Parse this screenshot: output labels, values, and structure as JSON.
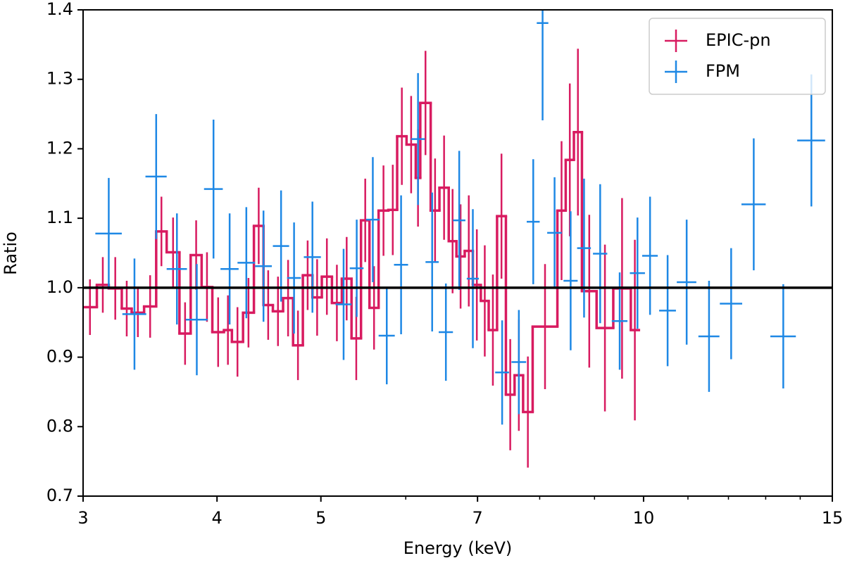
{
  "chart_data": {
    "type": "errorbar",
    "xlabel": "Energy (keV)",
    "ylabel": "Ratio",
    "xscale": "log",
    "xlim": [
      3,
      15
    ],
    "xticks": [
      3,
      4,
      5,
      7,
      10,
      15
    ],
    "xminor_ticks": [
      6,
      8,
      9,
      11,
      12,
      13,
      14
    ],
    "ylim": [
      0.7,
      1.4
    ],
    "yticks": [
      0.7,
      0.8,
      0.9,
      {
        "value": 1,
        "label": "1.0"
      },
      1.1,
      1.2,
      1.3,
      1.4
    ],
    "hline": 1,
    "legend": "upper right",
    "series": [
      {
        "name": "EPIC-pn",
        "color": "#d81b60",
        "drawstyle": "steps",
        "bins": [
          3.0,
          3.09,
          3.17,
          3.26,
          3.33,
          3.42,
          3.51,
          3.59,
          3.69,
          3.78,
          3.87,
          3.96,
          4.06,
          4.13,
          4.23,
          4.33,
          4.42,
          4.51,
          4.61,
          4.71,
          4.81,
          4.91,
          5.01,
          5.12,
          5.23,
          5.34,
          5.45,
          5.55,
          5.66,
          5.78,
          5.89,
          6.01,
          6.13,
          6.19,
          6.33,
          6.45,
          6.58,
          6.69,
          6.81,
          6.93,
          7.05,
          7.17,
          7.3,
          7.44,
          7.58,
          7.72,
          7.88,
          8.31,
          8.46,
          8.61,
          8.76,
          9.04,
          9.37,
          9.73,
          9.9
        ],
        "values": [
          0.972,
          1.004,
          0.999,
          0.97,
          0.964,
          0.973,
          1.081,
          1.051,
          0.934,
          1.047,
          1.001,
          0.936,
          0.939,
          0.922,
          0.964,
          1.089,
          0.975,
          0.966,
          0.985,
          0.917,
          1.018,
          0.986,
          1.016,
          0.978,
          1.013,
          0.927,
          1.097,
          0.971,
          1.111,
          1.112,
          1.218,
          1.206,
          1.158,
          1.266,
          1.111,
          1.144,
          1.067,
          1.045,
          1.053,
          1.004,
          0.981,
          0.939,
          1.103,
          0.846,
          0.874,
          0.821,
          0.944,
          1.111,
          1.184,
          1.224,
          0.995,
          0.942,
          0.999,
          0.939
        ],
        "errors": [
          0.04,
          0.04,
          0.045,
          0.04,
          0.035,
          0.045,
          0.05,
          0.05,
          0.045,
          0.05,
          0.05,
          0.05,
          0.05,
          0.05,
          0.05,
          0.055,
          0.05,
          0.05,
          0.055,
          0.05,
          0.05,
          0.055,
          0.055,
          0.055,
          0.06,
          0.06,
          0.06,
          0.06,
          0.065,
          0.065,
          0.07,
          0.07,
          0.07,
          0.075,
          0.075,
          0.075,
          0.075,
          0.075,
          0.08,
          0.08,
          0.08,
          0.08,
          0.09,
          0.08,
          0.08,
          0.08,
          0.09,
          0.1,
          0.11,
          0.12,
          0.11,
          0.12,
          0.13,
          0.13
        ]
      },
      {
        "name": "FPM",
        "color": "#1e88e5",
        "drawstyle": "points",
        "x": [
          3.17,
          3.35,
          3.51,
          3.67,
          3.83,
          3.97,
          4.11,
          4.26,
          4.42,
          4.59,
          4.72,
          4.91,
          5.25,
          5.4,
          5.59,
          5.76,
          5.94,
          6.16,
          6.35,
          6.54,
          6.73,
          6.93,
          7.38,
          7.65,
          7.89,
          8.05,
          8.26,
          8.55,
          8.8,
          9.11,
          9.5,
          9.87,
          10.14,
          10.53,
          10.97,
          11.51,
          12.07,
          12.67,
          13.5,
          14.34
        ],
        "xerr": [
          0.09,
          0.086,
          0.08,
          0.08,
          0.09,
          0.08,
          0.08,
          0.08,
          0.08,
          0.08,
          0.07,
          0.09,
          0.09,
          0.08,
          0.08,
          0.1,
          0.09,
          0.09,
          0.09,
          0.1,
          0.09,
          0.09,
          0.11,
          0.12,
          0.11,
          0.1,
          0.13,
          0.13,
          0.13,
          0.14,
          0.16,
          0.16,
          0.17,
          0.19,
          0.23,
          0.26,
          0.29,
          0.33,
          0.37,
          0.43
        ],
        "values": [
          1.078,
          0.962,
          1.16,
          1.027,
          0.954,
          1.142,
          1.027,
          1.036,
          1.031,
          1.06,
          1.014,
          1.044,
          0.976,
          1.028,
          1.098,
          0.931,
          1.033,
          1.214,
          1.037,
          0.936,
          1.097,
          1.013,
          0.878,
          0.893,
          1.095,
          1.381,
          1.079,
          1.01,
          1.057,
          1.049,
          0.952,
          1.021,
          1.046,
          0.967,
          1.008,
          0.93,
          0.977,
          1.12,
          0.93,
          1.212
        ],
        "errors": [
          0.08,
          0.08,
          0.09,
          0.08,
          0.08,
          0.1,
          0.08,
          0.08,
          0.08,
          0.08,
          0.08,
          0.08,
          0.08,
          0.07,
          0.09,
          0.07,
          0.1,
          0.095,
          0.1,
          0.07,
          0.1,
          0.1,
          0.075,
          0.075,
          0.09,
          0.14,
          0.08,
          0.1,
          0.1,
          0.1,
          0.07,
          0.08,
          0.085,
          0.08,
          0.09,
          0.08,
          0.08,
          0.095,
          0.075,
          0.095
        ]
      }
    ]
  }
}
